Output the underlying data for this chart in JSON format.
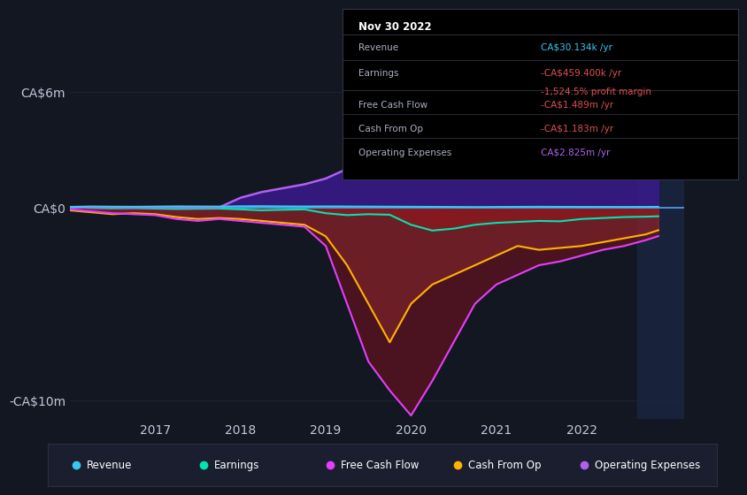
{
  "bg_color": "#131722",
  "grid_color": "#1e2533",
  "axis_label_color": "#c0c8d8",
  "zero_line_color": "#4a90d9",
  "ylim": [
    -11000000,
    7500000
  ],
  "xlim": [
    2016.0,
    2023.2
  ],
  "yticks": [
    -10000000,
    0,
    6000000
  ],
  "ytick_labels": [
    "-CA$10m",
    "CA$0",
    "CA$6m"
  ],
  "xtick_labels": [
    "2017",
    "2018",
    "2019",
    "2020",
    "2021",
    "2022"
  ],
  "xtick_positions": [
    2017,
    2018,
    2019,
    2020,
    2021,
    2022
  ],
  "series": {
    "revenue": {
      "color": "#38c8f0",
      "label": "Revenue"
    },
    "earnings": {
      "color": "#00e5b0",
      "label": "Earnings"
    },
    "free_cash_flow": {
      "color": "#e040fb",
      "label": "Free Cash Flow"
    },
    "cash_from_op": {
      "color": "#ffb300",
      "label": "Cash From Op"
    },
    "operating_expenses": {
      "color": "#b060f0",
      "label": "Operating Expenses"
    }
  },
  "x_data": [
    2016.0,
    2016.25,
    2016.5,
    2016.75,
    2017.0,
    2017.25,
    2017.5,
    2017.75,
    2018.0,
    2018.25,
    2018.5,
    2018.75,
    2019.0,
    2019.25,
    2019.5,
    2019.75,
    2020.0,
    2020.25,
    2020.5,
    2020.75,
    2021.0,
    2021.25,
    2021.5,
    2021.75,
    2022.0,
    2022.25,
    2022.5,
    2022.75,
    2022.9
  ],
  "revenue": [
    30000,
    50000,
    40000,
    35000,
    45000,
    55000,
    50000,
    45000,
    60000,
    65000,
    55000,
    50000,
    55000,
    50000,
    45000,
    40000,
    35000,
    30000,
    25000,
    20000,
    25000,
    30000,
    35000,
    30000,
    28000,
    26000,
    25000,
    27000,
    30134
  ],
  "earnings": [
    20000,
    -30000,
    -50000,
    -40000,
    -60000,
    -80000,
    -70000,
    -60000,
    -100000,
    -150000,
    -120000,
    -100000,
    -300000,
    -400000,
    -350000,
    -380000,
    -900000,
    -1200000,
    -1100000,
    -900000,
    -800000,
    -750000,
    -700000,
    -720000,
    -600000,
    -550000,
    -500000,
    -480000,
    -459400
  ],
  "free_cash_flow": [
    -100000,
    -200000,
    -300000,
    -350000,
    -400000,
    -600000,
    -700000,
    -600000,
    -700000,
    -800000,
    -900000,
    -1000000,
    -2000000,
    -5000000,
    -8000000,
    -9500000,
    -10800000,
    -9000000,
    -7000000,
    -5000000,
    -4000000,
    -3500000,
    -3000000,
    -2800000,
    -2500000,
    -2200000,
    -2000000,
    -1700000,
    -1489000
  ],
  "cash_from_op": [
    -150000,
    -250000,
    -350000,
    -300000,
    -350000,
    -500000,
    -600000,
    -550000,
    -600000,
    -700000,
    -800000,
    -900000,
    -1500000,
    -3000000,
    -5000000,
    -7000000,
    -5000000,
    -4000000,
    -3500000,
    -3000000,
    -2500000,
    -2000000,
    -2200000,
    -2100000,
    -2000000,
    -1800000,
    -1600000,
    -1400000,
    -1183000
  ],
  "operating_expenses": [
    0,
    0,
    0,
    0,
    0,
    0,
    0,
    0,
    500000,
    800000,
    1000000,
    1200000,
    1500000,
    2000000,
    2500000,
    3000000,
    5000000,
    5500000,
    4800000,
    4500000,
    4200000,
    4000000,
    3800000,
    3900000,
    3600000,
    3400000,
    3200000,
    3000000,
    2825000
  ],
  "tooltip_date": "Nov 30 2022",
  "tooltip_rows": [
    {
      "label": "Revenue",
      "value": "CA$30.134k /yr",
      "vcolor": "#38c8f0",
      "sub": null,
      "scolor": null
    },
    {
      "label": "Earnings",
      "value": "-CA$459.400k /yr",
      "vcolor": "#e05050",
      "sub": "-1,524.5% profit margin",
      "scolor": "#e05050"
    },
    {
      "label": "Free Cash Flow",
      "value": "-CA$1.489m /yr",
      "vcolor": "#e05050",
      "sub": null,
      "scolor": null
    },
    {
      "label": "Cash From Op",
      "value": "-CA$1.183m /yr",
      "vcolor": "#e05050",
      "sub": null,
      "scolor": null
    },
    {
      "label": "Operating Expenses",
      "value": "CA$2.825m /yr",
      "vcolor": "#b060f0",
      "sub": null,
      "scolor": null
    }
  ],
  "legend_items": [
    {
      "label": "Revenue",
      "color": "#38c8f0"
    },
    {
      "label": "Earnings",
      "color": "#00e5b0"
    },
    {
      "label": "Free Cash Flow",
      "color": "#e040fb"
    },
    {
      "label": "Cash From Op",
      "color": "#ffb300"
    },
    {
      "label": "Operating Expenses",
      "color": "#b060f0"
    }
  ]
}
